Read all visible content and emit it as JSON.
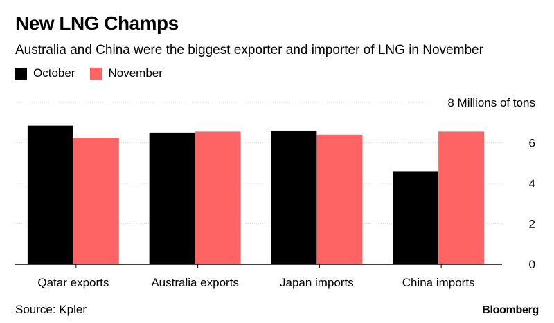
{
  "chart_data": {
    "type": "bar",
    "title": "New LNG Champs",
    "subtitle": "Australia and China were the biggest exporter and importer of LNG in November",
    "categories": [
      "Qatar exports",
      "Australia exports",
      "Japan imports",
      "China imports"
    ],
    "series": [
      {
        "name": "October",
        "color": "#000000",
        "values": [
          6.85,
          6.5,
          6.6,
          4.6
        ]
      },
      {
        "name": "November",
        "color": "#ff6464",
        "values": [
          6.25,
          6.55,
          6.4,
          6.55
        ]
      }
    ],
    "ylim": [
      0,
      8
    ],
    "yticks": [
      0,
      2,
      4,
      6
    ],
    "top_tick_label": "8 Millions of tons",
    "ylabel": "Millions of tons",
    "xlabel": "",
    "grid": true,
    "legend": "top-left",
    "source": "Source: Kpler",
    "brand": "Bloomberg"
  }
}
